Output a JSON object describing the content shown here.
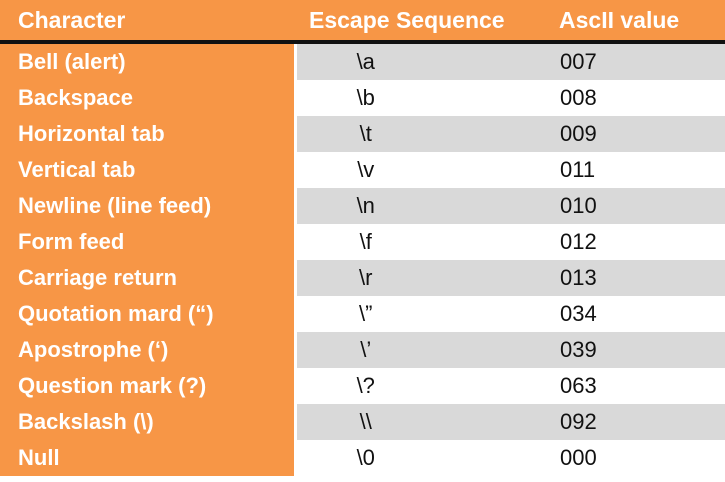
{
  "table": {
    "header": [
      "Character",
      "Escape Sequence",
      "AscII value"
    ],
    "rows": [
      [
        "Bell (alert)",
        "\\a",
        "007"
      ],
      [
        "Backspace",
        "\\b",
        "008"
      ],
      [
        "Horizontal tab",
        "\\t",
        "009"
      ],
      [
        "Vertical tab",
        "\\v",
        "011"
      ],
      [
        "Newline (line feed)",
        "\\n",
        "010"
      ],
      [
        "Form feed",
        "\\f",
        "012"
      ],
      [
        "Carriage return",
        "\\r",
        "013"
      ],
      [
        "Quotation mard (“)",
        "\\”",
        "034"
      ],
      [
        "Apostrophe (‘)",
        "\\’",
        "039"
      ],
      [
        "Question mark (?)",
        "\\?",
        "063"
      ],
      [
        "Backslash (\\)",
        "\\\\",
        "092"
      ],
      [
        "Null",
        "\\0",
        "000"
      ]
    ]
  }
}
